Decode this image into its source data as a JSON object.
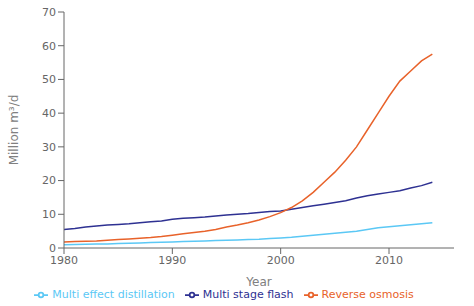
{
  "chart_data": {
    "type": "line",
    "xlabel": "Year",
    "ylabel": "Million m³/d",
    "x": [
      1980,
      1981,
      1982,
      1983,
      1984,
      1985,
      1986,
      1987,
      1988,
      1989,
      1990,
      1991,
      1992,
      1993,
      1994,
      1995,
      1996,
      1997,
      1998,
      1999,
      2000,
      2001,
      2002,
      2003,
      2004,
      2005,
      2006,
      2007,
      2008,
      2009,
      2010,
      2011,
      2012,
      2013,
      2014
    ],
    "series": [
      {
        "name": "Multi effect distillation",
        "color": "#5bc8f5",
        "values": [
          1.0,
          1.05,
          1.1,
          1.15,
          1.2,
          1.3,
          1.4,
          1.5,
          1.6,
          1.7,
          1.8,
          1.9,
          2.0,
          2.1,
          2.2,
          2.3,
          2.4,
          2.5,
          2.6,
          2.8,
          3.0,
          3.2,
          3.5,
          3.8,
          4.1,
          4.4,
          4.7,
          5.0,
          5.5,
          6.0,
          6.3,
          6.6,
          6.9,
          7.2,
          7.5
        ]
      },
      {
        "name": "Multi stage flash",
        "color": "#2e3192",
        "values": [
          5.5,
          5.8,
          6.2,
          6.5,
          6.8,
          7.0,
          7.2,
          7.5,
          7.8,
          8.0,
          8.5,
          8.8,
          9.0,
          9.2,
          9.5,
          9.8,
          10.0,
          10.2,
          10.5,
          10.8,
          11.0,
          11.5,
          12.0,
          12.5,
          13.0,
          13.5,
          14.0,
          14.8,
          15.5,
          16.0,
          16.5,
          17.0,
          17.8,
          18.5,
          19.5
        ]
      },
      {
        "name": "Reverse osmosis",
        "color": "#e8622a",
        "values": [
          1.8,
          1.9,
          2.0,
          2.1,
          2.3,
          2.5,
          2.7,
          2.9,
          3.1,
          3.4,
          3.8,
          4.2,
          4.6,
          5.0,
          5.5,
          6.2,
          6.8,
          7.5,
          8.3,
          9.3,
          10.5,
          12.0,
          14.0,
          16.5,
          19.5,
          22.5,
          26.0,
          30.0,
          35.0,
          40.0,
          45.0,
          49.5,
          52.5,
          55.5,
          57.5
        ]
      }
    ],
    "xlim": [
      1980,
      2016
    ],
    "xticks": [
      1980,
      1990,
      2000,
      2010
    ],
    "ylim": [
      0,
      70
    ],
    "yticks": [
      0,
      10,
      20,
      30,
      40,
      50,
      60,
      70
    ],
    "grid": false,
    "legend": "bottom"
  }
}
